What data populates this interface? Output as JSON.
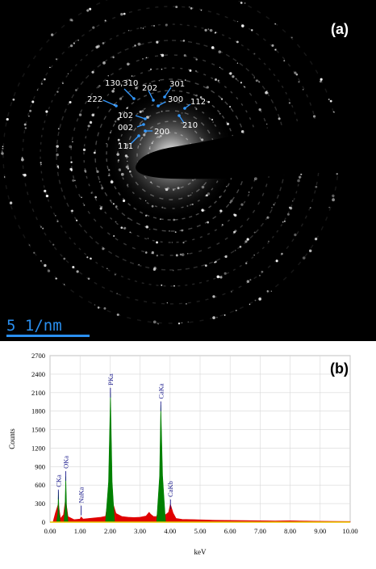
{
  "panel_a": {
    "label": "(a)",
    "scale_bar": "5 1/nm",
    "annotations": [
      "130,310",
      "202",
      "301",
      "222",
      "300",
      "112",
      "102",
      "210",
      "002",
      "200",
      "111"
    ]
  },
  "panel_b": {
    "label": "(b)"
  },
  "chart_data": {
    "type": "area",
    "xlabel": "keV",
    "ylabel": "Counts",
    "xlim": [
      0.0,
      10.0
    ],
    "ylim": [
      0,
      2700
    ],
    "x_ticks": [
      "0.00",
      "1.00",
      "2.00",
      "3.00",
      "4.00",
      "5.00",
      "6.00",
      "7.00",
      "8.00",
      "9.00",
      "10.00"
    ],
    "y_ticks": [
      0,
      300,
      600,
      900,
      1200,
      1500,
      1800,
      2100,
      2400,
      2700
    ],
    "grid": true,
    "series": [
      {
        "color": "#e00000",
        "points": [
          [
            0.1,
            0
          ],
          [
            0.18,
            150
          ],
          [
            0.28,
            300
          ],
          [
            0.35,
            60
          ],
          [
            0.45,
            120
          ],
          [
            0.52,
            380
          ],
          [
            0.6,
            90
          ],
          [
            0.8,
            40
          ],
          [
            1.0,
            50
          ],
          [
            1.04,
            85
          ],
          [
            1.1,
            50
          ],
          [
            1.3,
            60
          ],
          [
            1.5,
            70
          ],
          [
            1.7,
            80
          ],
          [
            1.85,
            95
          ],
          [
            1.95,
            420
          ],
          [
            2.05,
            110
          ],
          [
            2.1,
            300
          ],
          [
            2.2,
            140
          ],
          [
            2.4,
            90
          ],
          [
            2.6,
            80
          ],
          [
            2.8,
            75
          ],
          [
            3.0,
            80
          ],
          [
            3.2,
            100
          ],
          [
            3.3,
            160
          ],
          [
            3.35,
            130
          ],
          [
            3.45,
            90
          ],
          [
            3.55,
            90
          ],
          [
            3.65,
            260
          ],
          [
            3.75,
            120
          ],
          [
            3.85,
            120
          ],
          [
            3.95,
            160
          ],
          [
            4.01,
            290
          ],
          [
            4.1,
            150
          ],
          [
            4.2,
            60
          ],
          [
            4.4,
            45
          ],
          [
            4.8,
            40
          ],
          [
            5.5,
            30
          ],
          [
            6.5,
            25
          ],
          [
            7.5,
            20
          ],
          [
            8.0,
            22
          ],
          [
            8.3,
            20
          ],
          [
            9.0,
            15
          ],
          [
            10.0,
            10
          ]
        ]
      },
      {
        "color": "#008000",
        "points": [
          [
            0.22,
            0
          ],
          [
            0.26,
            150
          ],
          [
            0.28,
            500
          ],
          [
            0.3,
            150
          ],
          [
            0.34,
            0
          ],
          [
            0.47,
            0
          ],
          [
            0.5,
            250
          ],
          [
            0.525,
            740
          ],
          [
            0.55,
            250
          ],
          [
            0.6,
            0
          ],
          [
            1.85,
            0
          ],
          [
            1.95,
            650
          ],
          [
            2.013,
            2090
          ],
          [
            2.07,
            650
          ],
          [
            2.15,
            0
          ],
          [
            3.55,
            0
          ],
          [
            3.65,
            750
          ],
          [
            3.69,
            1900
          ],
          [
            3.75,
            750
          ],
          [
            3.85,
            0
          ]
        ]
      }
    ],
    "peak_labels": [
      {
        "text": "CKa",
        "x": 0.277
      },
      {
        "text": "OKa",
        "x": 0.525
      },
      {
        "text": "NaKa",
        "x": 1.041
      },
      {
        "text": "PKa",
        "x": 2.013
      },
      {
        "text": "CaKa",
        "x": 3.69
      },
      {
        "text": "CaKb",
        "x": 4.012
      }
    ]
  }
}
